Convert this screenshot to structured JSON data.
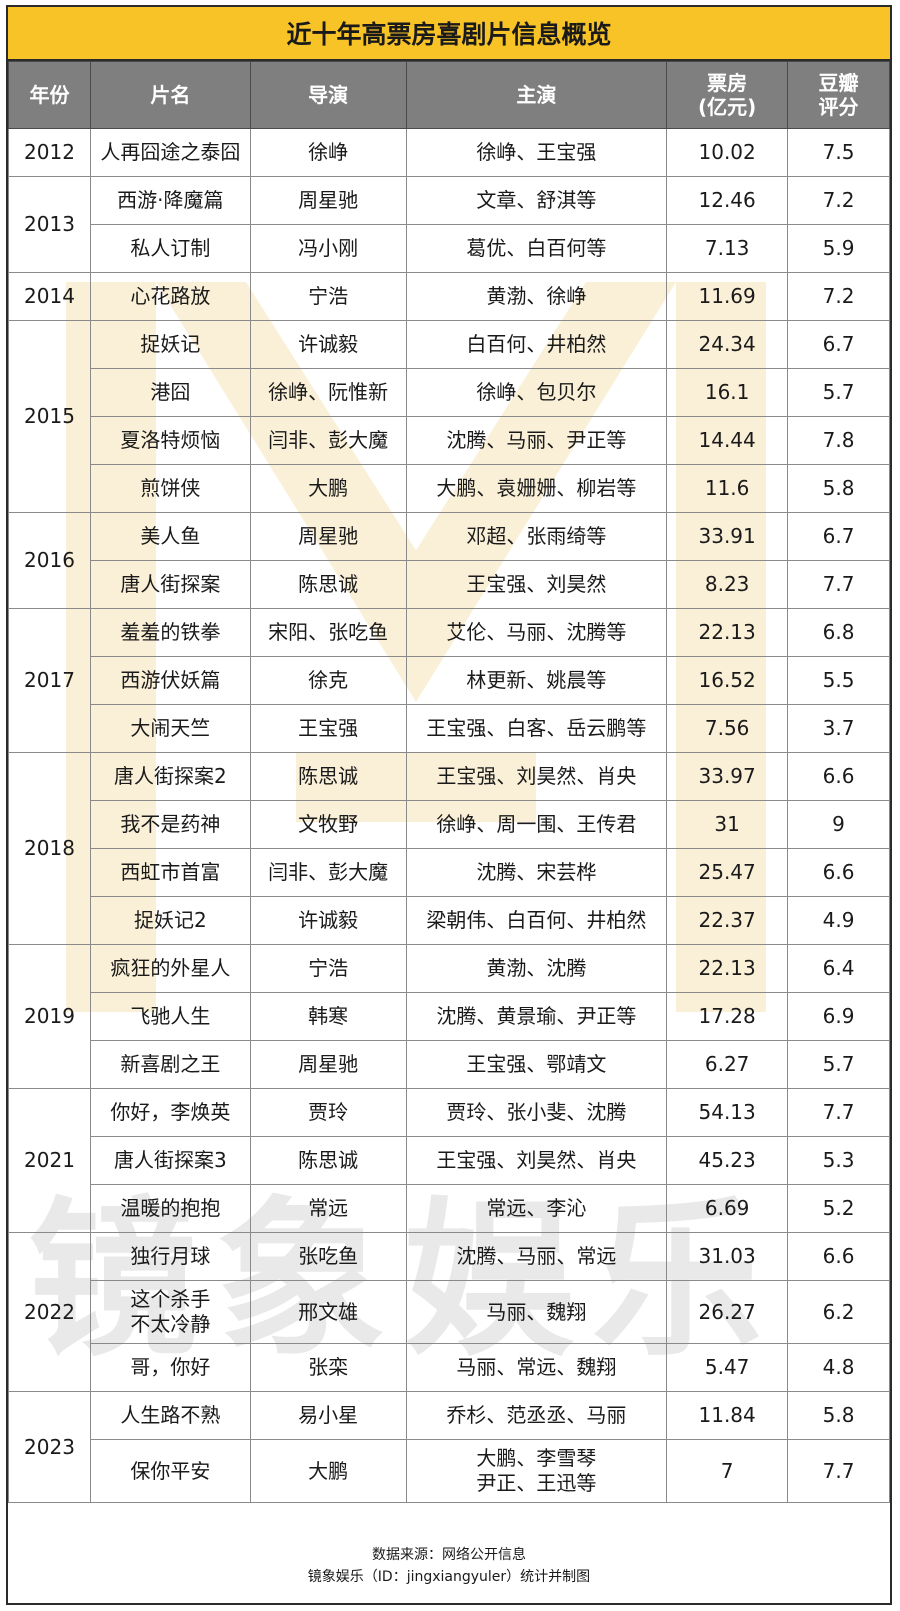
{
  "title": "近十年高票房喜剧片信息概览",
  "headers": {
    "year": "年份",
    "film": "片名",
    "director": "导演",
    "cast": "主演",
    "box_office_line1": "票房",
    "box_office_line2": "(亿元)",
    "rating_line1": "豆瓣",
    "rating_line2": "评分"
  },
  "groups": [
    {
      "year": "2012",
      "rows": [
        {
          "film": "人再囧途之泰囧",
          "director": "徐峥",
          "cast": "徐峥、王宝强",
          "box": "10.02",
          "rating": "7.5"
        }
      ]
    },
    {
      "year": "2013",
      "rows": [
        {
          "film": "西游·降魔篇",
          "director": "周星驰",
          "cast": "文章、舒淇等",
          "box": "12.46",
          "rating": "7.2"
        },
        {
          "film": "私人订制",
          "director": "冯小刚",
          "cast": "葛优、白百何等",
          "box": "7.13",
          "rating": "5.9"
        }
      ]
    },
    {
      "year": "2014",
      "rows": [
        {
          "film": "心花路放",
          "director": "宁浩",
          "cast": "黄渤、徐峥",
          "box": "11.69",
          "rating": "7.2"
        }
      ]
    },
    {
      "year": "2015",
      "rows": [
        {
          "film": "捉妖记",
          "director": "许诚毅",
          "cast": "白百何、井柏然",
          "box": "24.34",
          "rating": "6.7"
        },
        {
          "film": "港囧",
          "director": "徐峥、阮惟新",
          "cast": "徐峥、包贝尔",
          "box": "16.1",
          "rating": "5.7"
        },
        {
          "film": "夏洛特烦恼",
          "director": "闫非、彭大魔",
          "cast": "沈腾、马丽、尹正等",
          "box": "14.44",
          "rating": "7.8"
        },
        {
          "film": "煎饼侠",
          "director": "大鹏",
          "cast": "大鹏、袁姗姗、柳岩等",
          "box": "11.6",
          "rating": "5.8"
        }
      ]
    },
    {
      "year": "2016",
      "rows": [
        {
          "film": "美人鱼",
          "director": "周星驰",
          "cast": "邓超、张雨绮等",
          "box": "33.91",
          "rating": "6.7"
        },
        {
          "film": "唐人街探案",
          "director": "陈思诚",
          "cast": "王宝强、刘昊然",
          "box": "8.23",
          "rating": "7.7"
        }
      ]
    },
    {
      "year": "2017",
      "rows": [
        {
          "film": "羞羞的铁拳",
          "director": "宋阳、张吃鱼",
          "cast": "艾伦、马丽、沈腾等",
          "box": "22.13",
          "rating": "6.8"
        },
        {
          "film": "西游伏妖篇",
          "director": "徐克",
          "cast": "林更新、姚晨等",
          "box": "16.52",
          "rating": "5.5"
        },
        {
          "film": "大闹天竺",
          "director": "王宝强",
          "cast": "王宝强、白客、岳云鹏等",
          "box": "7.56",
          "rating": "3.7"
        }
      ]
    },
    {
      "year": "2018",
      "rows": [
        {
          "film": "唐人街探案2",
          "director": "陈思诚",
          "cast": "王宝强、刘昊然、肖央",
          "box": "33.97",
          "rating": "6.6"
        },
        {
          "film": "我不是药神",
          "director": "文牧野",
          "cast": "徐峥、周一围、王传君",
          "box": "31",
          "rating": "9"
        },
        {
          "film": "西虹市首富",
          "director": "闫非、彭大魔",
          "cast": "沈腾、宋芸桦",
          "box": "25.47",
          "rating": "6.6"
        },
        {
          "film": "捉妖记2",
          "director": "许诚毅",
          "cast": "梁朝伟、白百何、井柏然",
          "box": "22.37",
          "rating": "4.9"
        }
      ]
    },
    {
      "year": "2019",
      "rows": [
        {
          "film": "疯狂的外星人",
          "director": "宁浩",
          "cast": "黄渤、沈腾",
          "box": "22.13",
          "rating": "6.4"
        },
        {
          "film": "飞驰人生",
          "director": "韩寒",
          "cast": "沈腾、黄景瑜、尹正等",
          "box": "17.28",
          "rating": "6.9"
        },
        {
          "film": "新喜剧之王",
          "director": "周星驰",
          "cast": "王宝强、鄂靖文",
          "box": "6.27",
          "rating": "5.7"
        }
      ]
    },
    {
      "year": "2021",
      "rows": [
        {
          "film": "你好，李焕英",
          "director": "贾玲",
          "cast": "贾玲、张小斐、沈腾",
          "box": "54.13",
          "rating": "7.7"
        },
        {
          "film": "唐人街探案3",
          "director": "陈思诚",
          "cast": "王宝强、刘昊然、肖央",
          "box": "45.23",
          "rating": "5.3"
        },
        {
          "film": "温暖的抱抱",
          "director": "常远",
          "cast": "常远、李沁",
          "box": "6.69",
          "rating": "5.2"
        }
      ]
    },
    {
      "year": "2022",
      "rows": [
        {
          "film": "独行月球",
          "director": "张吃鱼",
          "cast": "沈腾、马丽、常远",
          "box": "31.03",
          "rating": "6.6"
        },
        {
          "film": "这个杀手\n不太冷静",
          "director": "邢文雄",
          "cast": "马丽、魏翔",
          "box": "26.27",
          "rating": "6.2",
          "tall": true
        },
        {
          "film": "哥，你好",
          "director": "张栾",
          "cast": "马丽、常远、魏翔",
          "box": "5.47",
          "rating": "4.8"
        }
      ]
    },
    {
      "year": "2023",
      "rows": [
        {
          "film": "人生路不熟",
          "director": "易小星",
          "cast": "乔杉、范丞丞、马丽",
          "box": "11.84",
          "rating": "5.8"
        },
        {
          "film": "保你平安",
          "director": "大鹏",
          "cast": "大鹏、李雪琴\n尹正、王迅等",
          "box": "7",
          "rating": "7.7",
          "tall": true
        }
      ]
    }
  ],
  "footer": {
    "source": "数据来源：网络公开信息",
    "credit": "镜象娱乐（ID：jingxiangyuler）统计并制图"
  },
  "watermark": "镜象娱乐",
  "colors": {
    "title_bg": "#f7c326",
    "header_bg": "#7f7f7f"
  }
}
